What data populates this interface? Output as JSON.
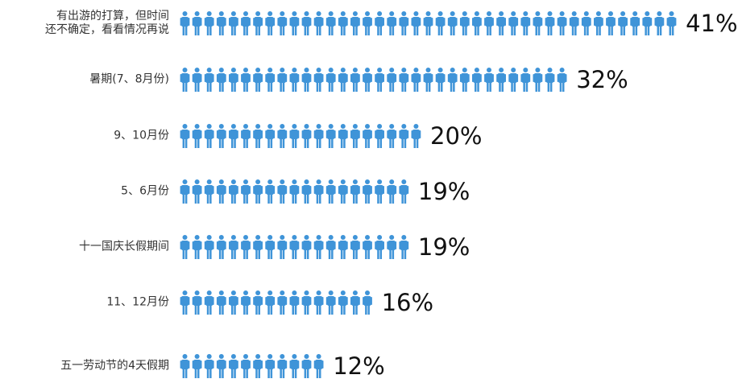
{
  "chart_data": {
    "type": "pictograph",
    "categories": [
      "有出游的打算，但时间\n还不确定，看看情况再说",
      "暑期(7、8月份)",
      "9、10月份",
      "5、6月份",
      "十一国庆长假期间",
      "11、12月份",
      "五一劳动节的4天假期"
    ],
    "values": [
      41,
      32,
      20,
      19,
      19,
      16,
      12
    ],
    "value_labels": [
      "41%",
      "32%",
      "20%",
      "19%",
      "19%",
      "16%",
      "12%"
    ],
    "color": "#3f94d8"
  }
}
